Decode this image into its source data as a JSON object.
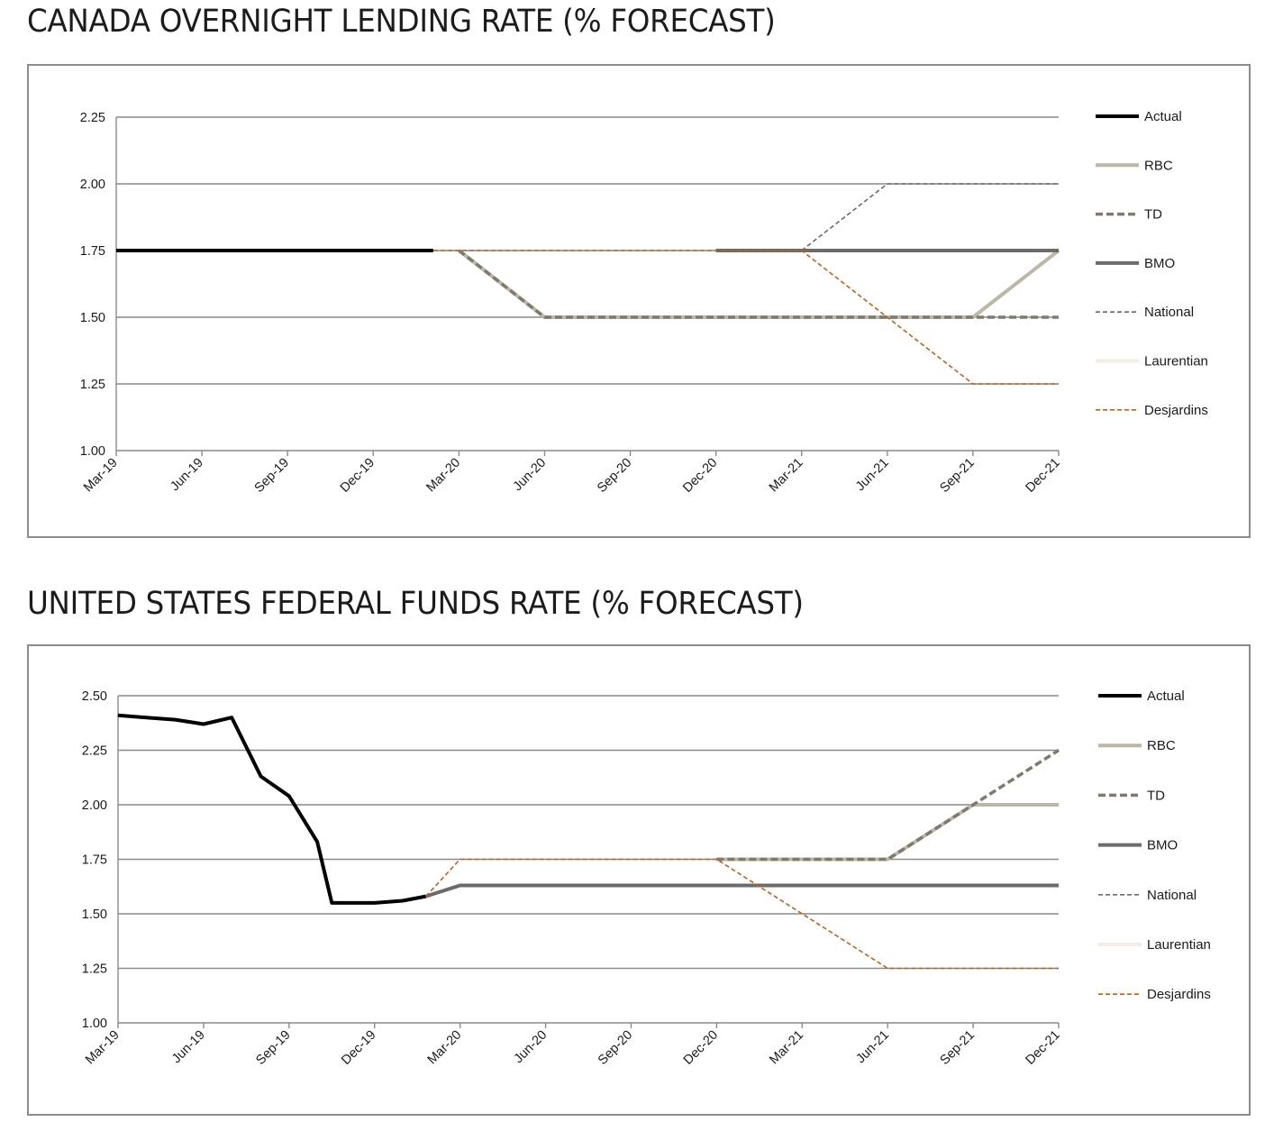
{
  "chart_data": [
    {
      "type": "line",
      "title": "CANADA OVERNIGHT LENDING RATE (% FORECAST)",
      "xlabel": "",
      "ylabel": "",
      "x_ticks": [
        "Mar-19",
        "Jun-19",
        "Sep-19",
        "Dec-19",
        "Mar-20",
        "Jun-20",
        "Sep-20",
        "Dec-20",
        "Mar-21",
        "Jun-21",
        "Sep-21",
        "Dec-21"
      ],
      "y_ticks": [
        "1.00",
        "1.25",
        "1.50",
        "1.75",
        "2.00",
        "2.25"
      ],
      "ylim": [
        1.0,
        2.25
      ],
      "grid": true,
      "legend_position": "right",
      "series": [
        {
          "name": "Actual",
          "color": "#000000",
          "style": "solid-thick",
          "points": [
            [
              0,
              1.75
            ],
            [
              3.7,
              1.75
            ]
          ]
        },
        {
          "name": "RBC",
          "color": "#bcb7a6",
          "style": "solid-thick",
          "points": [
            [
              4,
              1.75
            ],
            [
              5,
              1.5
            ],
            [
              10,
              1.5
            ],
            [
              11,
              1.75
            ]
          ]
        },
        {
          "name": "TD",
          "color": "#7f7a6c",
          "style": "dashed-thick",
          "points": [
            [
              4,
              1.75
            ],
            [
              5,
              1.5
            ],
            [
              11,
              1.5
            ]
          ]
        },
        {
          "name": "BMO",
          "color": "#6d6a6a",
          "style": "solid-thick",
          "points": [
            [
              7,
              1.75
            ],
            [
              11,
              1.75
            ]
          ]
        },
        {
          "name": "National",
          "color": "#6a6a6a",
          "style": "dashed-thin",
          "points": [
            [
              8,
              1.75
            ],
            [
              9,
              2.0
            ],
            [
              11,
              2.0
            ]
          ]
        },
        {
          "name": "Laurentian",
          "color": "#f3ede3",
          "style": "solid-thick",
          "points": []
        },
        {
          "name": "Desjardins",
          "color": "#b5651d",
          "style": "dashed-thin",
          "points": [
            [
              3.7,
              1.75
            ],
            [
              8,
              1.75
            ],
            [
              10,
              1.25
            ],
            [
              11,
              1.25
            ]
          ]
        }
      ]
    },
    {
      "type": "line",
      "title": "UNITED STATES FEDERAL FUNDS RATE (% FORECAST)",
      "xlabel": "",
      "ylabel": "",
      "x_ticks": [
        "Mar-19",
        "Jun-19",
        "Sep-19",
        "Dec-19",
        "Mar-20",
        "Jun-20",
        "Sep-20",
        "Dec-20",
        "Mar-21",
        "Jun-21",
        "Sep-21",
        "Dec-21"
      ],
      "y_ticks": [
        "1.00",
        "1.25",
        "1.50",
        "1.75",
        "2.00",
        "2.25",
        "2.50"
      ],
      "ylim": [
        1.0,
        2.5
      ],
      "grid": true,
      "legend_position": "right",
      "series": [
        {
          "name": "Actual",
          "color": "#000000",
          "style": "solid-thick",
          "points": [
            [
              0,
              2.41
            ],
            [
              0.33,
              2.4
            ],
            [
              0.67,
              2.39
            ],
            [
              1,
              2.37
            ],
            [
              1.33,
              2.4
            ],
            [
              1.67,
              2.13
            ],
            [
              2,
              2.04
            ],
            [
              2.33,
              1.83
            ],
            [
              2.5,
              1.55
            ],
            [
              3,
              1.55
            ],
            [
              3.33,
              1.56
            ],
            [
              3.6,
              1.58
            ]
          ]
        },
        {
          "name": "RBC",
          "color": "#bcb7a6",
          "style": "solid-thick",
          "points": [
            [
              7,
              1.75
            ],
            [
              9,
              1.75
            ],
            [
              10,
              2.0
            ],
            [
              11,
              2.0
            ]
          ]
        },
        {
          "name": "TD",
          "color": "#7f7a6c",
          "style": "dashed-thick",
          "points": [
            [
              7,
              1.75
            ],
            [
              9,
              1.75
            ],
            [
              10,
              2.0
            ],
            [
              11,
              2.25
            ]
          ]
        },
        {
          "name": "BMO",
          "color": "#6d6a6a",
          "style": "solid-thick",
          "points": [
            [
              3.6,
              1.58
            ],
            [
              4,
              1.63
            ],
            [
              11,
              1.63
            ]
          ]
        },
        {
          "name": "National",
          "color": "#6a6a6a",
          "style": "dashed-thin",
          "points": []
        },
        {
          "name": "Laurentian",
          "color": "#f3ede3",
          "style": "solid-thick",
          "points": []
        },
        {
          "name": "Desjardins",
          "color": "#b5651d",
          "style": "dashed-thin",
          "points": [
            [
              3.6,
              1.58
            ],
            [
              4,
              1.75
            ],
            [
              7,
              1.75
            ],
            [
              9,
              1.25
            ],
            [
              11,
              1.25
            ]
          ]
        }
      ]
    }
  ]
}
